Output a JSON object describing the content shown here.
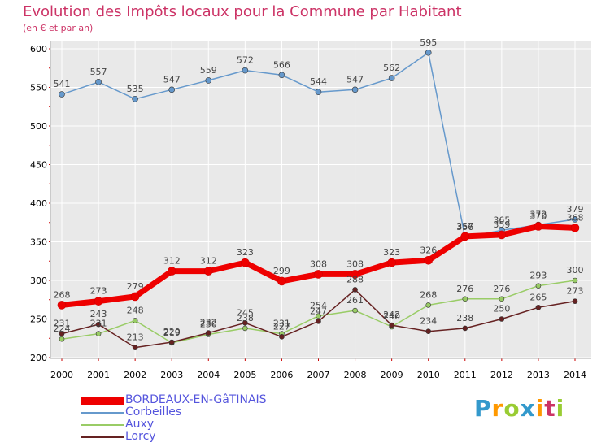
{
  "title": "Evolution des Impôts locaux pour la Commune par Habitant",
  "subtitle": "(en € et par an)",
  "logo": {
    "letters": [
      "P",
      "r",
      "o",
      "x",
      "i",
      "t",
      "i"
    ],
    "colors": [
      "#3399cc",
      "#ff9900",
      "#99cc33",
      "#3399cc",
      "#ff9900",
      "#cc3366",
      "#99cc33"
    ]
  },
  "colors": {
    "plot_bg": "#e9e9e9",
    "grid": "#ffffff",
    "legend_text": "#5555dd"
  },
  "chart_data": {
    "type": "line",
    "title": "Evolution des Impôts locaux pour la Commune par Habitant",
    "subtitle": "(en € et par an)",
    "x": [
      "2000",
      "2001",
      "2002",
      "2003",
      "2004",
      "2005",
      "2006",
      "2007",
      "2008",
      "2009",
      "2010",
      "2011",
      "2012",
      "2013",
      "2014"
    ],
    "ylim": [
      200,
      600
    ],
    "yticks": [
      200,
      250,
      300,
      350,
      400,
      450,
      500,
      550,
      600
    ],
    "grid": true,
    "legend": "bottom-left",
    "series": [
      {
        "name": "BORDEAUX-EN-GâTINAIS",
        "color": "#ee0000",
        "values": [
          268,
          273,
          279,
          312,
          312,
          323,
          299,
          308,
          308,
          323,
          326,
          357,
          359,
          370,
          368
        ],
        "labels": [
          "268",
          "273",
          "279",
          "312",
          "312",
          "323",
          "299",
          "308",
          "308",
          "323",
          "326",
          "357",
          "359",
          "370",
          "368"
        ]
      },
      {
        "name": "Corbeilles",
        "color": "#6699cc",
        "values": [
          541,
          557,
          535,
          547,
          559,
          572,
          566,
          544,
          547,
          562,
          595,
          356,
          365,
          372,
          379
        ],
        "labels": [
          "541",
          "557",
          "535",
          "547",
          "559",
          "572",
          "566",
          "544",
          "547",
          "562",
          "595",
          "356",
          "365",
          "372",
          "379"
        ]
      },
      {
        "name": "Auxy",
        "color": "#99cc66",
        "values": [
          224,
          231,
          248,
          219,
          230,
          238,
          231,
          254,
          261,
          240,
          268,
          276,
          276,
          293,
          300
        ],
        "labels": [
          "224",
          "231",
          "248",
          "219",
          "230",
          "238",
          "231",
          "254",
          "261",
          "240",
          "268",
          "276",
          "276",
          "293",
          "300"
        ]
      },
      {
        "name": "Lorcy",
        "color": "#662222",
        "values": [
          231,
          243,
          213,
          220,
          232,
          245,
          227,
          247,
          288,
          242,
          234,
          238,
          250,
          265,
          273
        ],
        "labels": [
          "231",
          "243",
          "213",
          "220",
          "232",
          "245",
          "227",
          "247",
          "288",
          "242",
          "234",
          "238",
          "250",
          "265",
          "273"
        ]
      }
    ]
  }
}
